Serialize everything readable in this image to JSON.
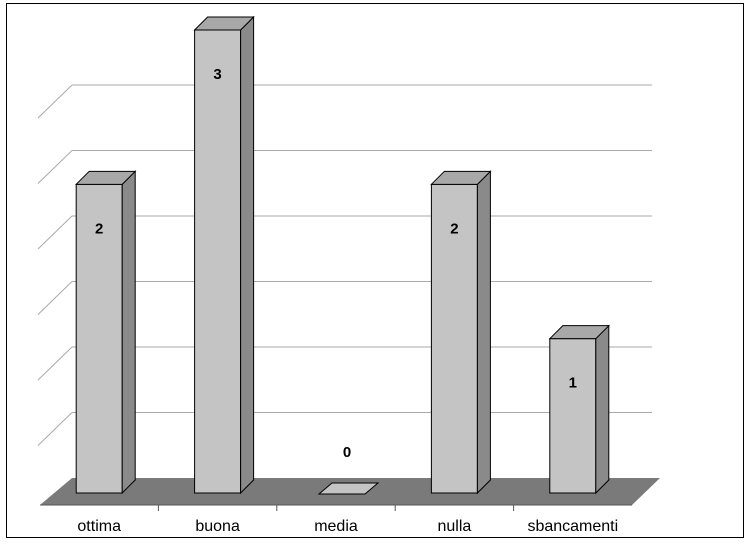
{
  "chart_data": {
    "type": "bar",
    "style": "3d-column",
    "title": "",
    "xlabel": "",
    "ylabel": "",
    "categories": [
      "ottima",
      "buona",
      "media",
      "nulla",
      "sbancamenti"
    ],
    "values": [
      2,
      3,
      0,
      2,
      1
    ],
    "data_labels": [
      "2",
      "3",
      "0",
      "2",
      "1"
    ],
    "ylim": [
      0,
      3
    ],
    "gridlines": 6,
    "grid": true,
    "legend": "none",
    "colors": {
      "bar_front": "#c4c4c4",
      "bar_side": "#8a8a8a",
      "bar_top": "#a8a8a8",
      "floor": "#7a7a7a",
      "gridline": "#aaaaaa",
      "frame": "#000000"
    }
  }
}
